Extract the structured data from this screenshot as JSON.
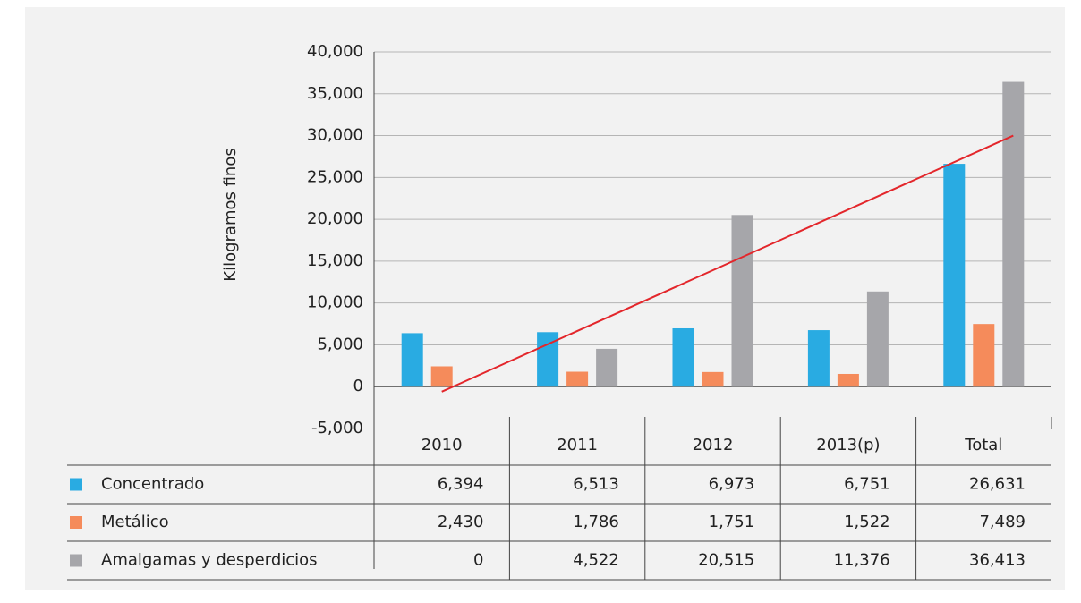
{
  "chart_data": {
    "type": "bar",
    "y_label": "Kilogramos finos",
    "categories": [
      "2010",
      "2011",
      "2012",
      "2013(p)",
      "Total"
    ],
    "series": [
      {
        "name": "Concentrado",
        "color": "#29abe2",
        "values": [
          6394,
          6513,
          6973,
          6751,
          26631
        ],
        "value_labels": [
          "6,394",
          "6,513",
          "6,973",
          "6,751",
          "26,631"
        ]
      },
      {
        "name": "Metálico",
        "color": "#f58b5b",
        "values": [
          2430,
          1786,
          1751,
          1522,
          7489
        ],
        "value_labels": [
          "2,430",
          "1,786",
          "1,751",
          "1,522",
          "7,489"
        ]
      },
      {
        "name": "Amalgamas y desperdicios",
        "color": "#a6a6aa",
        "values": [
          0,
          4522,
          20515,
          11376,
          36413
        ],
        "value_labels": [
          "0",
          "4,522",
          "20,515",
          "11,376",
          "36,413"
        ]
      }
    ],
    "trendline": {
      "color": "#e3262b",
      "values": [
        -600,
        30000
      ]
    },
    "ylim": [
      -5000,
      40000
    ],
    "yticks": [
      {
        "value": -5000,
        "label": "-5,000"
      },
      0,
      {
        "value": 5000,
        "label": "5,000"
      },
      {
        "value": 10000,
        "label": "10,000"
      },
      {
        "value": 15000,
        "label": "15,000"
      },
      {
        "value": 20000,
        "label": "20,000"
      },
      {
        "value": 25000,
        "label": "25,000"
      },
      {
        "value": 30000,
        "label": "30,000"
      },
      {
        "value": 35000,
        "label": "35,000"
      },
      {
        "value": 40000,
        "label": "40,000"
      }
    ],
    "grid": true
  }
}
